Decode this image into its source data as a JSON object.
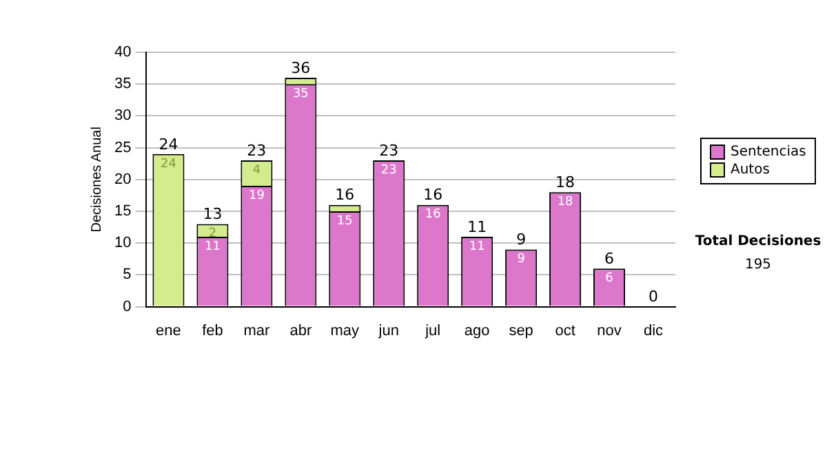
{
  "chart_data": {
    "type": "bar",
    "stacked": true,
    "ylabel": "Decisiones Anual",
    "categories": [
      "ene",
      "feb",
      "mar",
      "abr",
      "may",
      "jun",
      "jul",
      "ago",
      "sep",
      "oct",
      "nov",
      "dic"
    ],
    "series": [
      {
        "name": "Sentencias",
        "color": "#dd77cc",
        "values": [
          0,
          11,
          19,
          35,
          15,
          23,
          16,
          11,
          9,
          18,
          6,
          0
        ],
        "value_labels": [
          null,
          "11",
          "19",
          "35",
          "15",
          "23",
          "16",
          "11",
          "9",
          "18",
          "6",
          null
        ]
      },
      {
        "name": "Autos",
        "color": "#d4ec8c",
        "values": [
          24,
          2,
          4,
          1,
          1,
          0,
          0,
          0,
          0,
          0,
          0,
          0
        ],
        "value_labels": [
          "24",
          "2",
          "4",
          null,
          null,
          null,
          null,
          null,
          null,
          null,
          null,
          null
        ]
      }
    ],
    "totals": [
      "24",
      "13",
      "23",
      "36",
      "16",
      "23",
      "16",
      "11",
      "9",
      "18",
      "6",
      "0"
    ],
    "ylim": [
      0,
      40
    ],
    "yticks": [
      0,
      5,
      10,
      15,
      20,
      25,
      30,
      35,
      40
    ],
    "grid": "y",
    "legend": "right",
    "annotations": [
      "Total Decisiones",
      "195"
    ]
  }
}
